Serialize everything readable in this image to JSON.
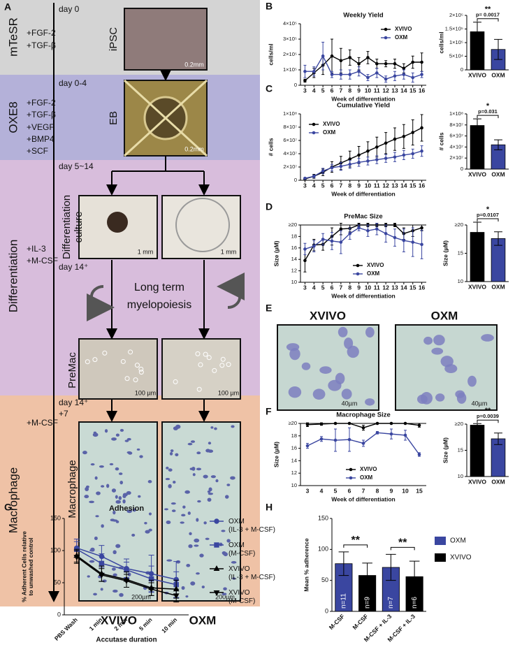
{
  "panel_labels": [
    "A",
    "B",
    "C",
    "D",
    "E",
    "F",
    "G",
    "H"
  ],
  "diagram": {
    "stages": [
      "mTeSR",
      "OXE8",
      "Differentiation",
      "Macrophage"
    ],
    "factors": [
      [
        "+FGF-2",
        "+TGF-β"
      ],
      [
        "+FGF-2",
        "+TGF-β",
        "+VEGF",
        "+BMP4",
        "+SCF"
      ],
      [
        "+IL-3",
        "+M-CSF"
      ],
      [
        "+M-CSF"
      ]
    ],
    "days": [
      "day 0",
      "day 0-4",
      "day 5~14",
      "day 14⁺",
      "day 14⁺",
      "+7"
    ],
    "image_labels": [
      "iPSC",
      "EB",
      "Differentiation",
      "culture",
      "PreMac",
      "Macrophage"
    ],
    "scale_bars": [
      "0.2mm",
      "0.2mm",
      "1 mm",
      "1 mm",
      "100 µm",
      "100 µm",
      "200µm",
      "200µm"
    ],
    "center_text": [
      "Long term",
      "myelopoiesis"
    ],
    "conditions": [
      "XVIVO",
      "OXM"
    ]
  },
  "micrographs": {
    "titles": [
      "XVIVO",
      "OXM"
    ],
    "scale_bars": [
      "40µm",
      "40µm"
    ]
  },
  "chart_data": [
    {
      "type": "line",
      "title": "Weekly Yield",
      "ylabel": "cells/ml",
      "xlabel": "Week of differentiation",
      "x": [
        3,
        4,
        5,
        6,
        7,
        8,
        9,
        10,
        11,
        12,
        13,
        14,
        15,
        16
      ],
      "xlim": [
        2.5,
        16.5
      ],
      "xticks": [
        3,
        4,
        5,
        6,
        7,
        8,
        9,
        10,
        11,
        12,
        13,
        14,
        15,
        16
      ],
      "ylim": [
        0,
        400000
      ],
      "yticks": [
        0,
        {
          "value": 100000,
          "label": "1×10⁵"
        },
        {
          "value": 200000,
          "label": "2×10⁵"
        },
        {
          "value": 300000,
          "label": "3×10⁵"
        },
        {
          "value": 400000,
          "label": "4×10⁵"
        }
      ],
      "legend": "upper-right",
      "series": [
        {
          "name": "XVIVO",
          "color": "#000000",
          "marker": "circle",
          "values": [
            30000,
            80000,
            130000,
            190000,
            160000,
            180000,
            140000,
            180000,
            140000,
            140000,
            140000,
            110000,
            150000,
            150000
          ],
          "errors": [
            10000,
            30000,
            60000,
            110000,
            80000,
            50000,
            40000,
            40000,
            30000,
            20000,
            30000,
            30000,
            40000,
            60000
          ]
        },
        {
          "name": "OXM",
          "color": "#3a46a0",
          "marker": "circle",
          "values": [
            90000,
            90000,
            190000,
            70000,
            70000,
            70000,
            90000,
            50000,
            80000,
            40000,
            60000,
            70000,
            50000,
            70000
          ],
          "errors": [
            40000,
            30000,
            90000,
            20000,
            30000,
            30000,
            30000,
            20000,
            30000,
            20000,
            30000,
            30000,
            30000,
            20000
          ]
        }
      ]
    },
    {
      "type": "bar",
      "ylabel": "cells/ml",
      "categories": [
        "XVIVO",
        "OXM"
      ],
      "colors": [
        "#000000",
        "#3a46a0"
      ],
      "values": [
        140000,
        75000
      ],
      "errors": [
        35000,
        37000
      ],
      "ylim": [
        0,
        200000
      ],
      "yticks": [
        0,
        {
          "value": 50000,
          "label": "5×10⁴"
        },
        {
          "value": 100000,
          "label": "1×10⁵"
        },
        {
          "value": 150000,
          "label": "1.5×10⁵"
        },
        {
          "value": 200000,
          "label": "2×10⁵"
        }
      ],
      "significance": [
        "**"
      ],
      "p_values": [
        "p= 0.0017"
      ]
    },
    {
      "type": "line",
      "title": "Cumulative Yield",
      "ylabel": "# cells",
      "xlabel": "Week of differentiation",
      "x": [
        3,
        4,
        5,
        6,
        7,
        8,
        9,
        10,
        11,
        12,
        13,
        14,
        15,
        16
      ],
      "xlim": [
        2.5,
        16.5
      ],
      "xticks": [
        3,
        4,
        5,
        6,
        7,
        8,
        9,
        10,
        11,
        12,
        13,
        14,
        15,
        16
      ],
      "ylim": [
        0,
        100000000
      ],
      "yticks": [
        0,
        {
          "value": 20000000,
          "label": "2×10⁷"
        },
        {
          "value": 40000000,
          "label": "4×10⁷"
        },
        {
          "value": 60000000,
          "label": "6×10⁷"
        },
        {
          "value": 80000000,
          "label": "8×10⁷"
        },
        {
          "value": 100000000,
          "label": "1×10⁸"
        }
      ],
      "legend": "upper-left",
      "series": [
        {
          "name": "XVIVO",
          "color": "#000000",
          "marker": "circle",
          "values": [
            2000000,
            6000000,
            12000000,
            20000000,
            26000000,
            32000000,
            38000000,
            44000000,
            50000000,
            56000000,
            62000000,
            66000000,
            72000000,
            79000000
          ],
          "errors": [
            1000000,
            3000000,
            5000000,
            8000000,
            10000000,
            12000000,
            13000000,
            14000000,
            15000000,
            16000000,
            17000000,
            18000000,
            19000000,
            20000000
          ]
        },
        {
          "name": "OXM",
          "color": "#3a46a0",
          "marker": "circle",
          "values": [
            3000000,
            6000000,
            14000000,
            19000000,
            21000000,
            24000000,
            27000000,
            29000000,
            31000000,
            33000000,
            35000000,
            38000000,
            40000000,
            44000000
          ],
          "errors": [
            1000000,
            2000000,
            4000000,
            5000000,
            6000000,
            6000000,
            6000000,
            6000000,
            6000000,
            6000000,
            7000000,
            7000000,
            7000000,
            8000000
          ]
        }
      ]
    },
    {
      "type": "bar",
      "ylabel": "# cells",
      "categories": [
        "XVIVO",
        "OXM"
      ],
      "colors": [
        "#000000",
        "#3a46a0"
      ],
      "values": [
        79000000,
        44000000
      ],
      "errors": [
        12000000,
        9000000
      ],
      "ylim": [
        0,
        100000000
      ],
      "yticks": [
        0,
        {
          "value": 20000000,
          "label": "2×10⁷"
        },
        {
          "value": 40000000,
          "label": "4×10⁷"
        },
        {
          "value": 60000000,
          "label": "6×10⁷"
        },
        {
          "value": 80000000,
          "label": "8×10⁷"
        },
        {
          "value": 100000000,
          "label": "1×10⁸"
        }
      ],
      "significance": [
        "*"
      ],
      "p_values": [
        "p=0.031"
      ]
    },
    {
      "type": "line",
      "title": "PreMac Size",
      "ylabel": "Size (µM)",
      "xlabel": "Week of differentiation",
      "x": [
        3,
        4,
        5,
        6,
        7,
        8,
        9,
        10,
        11,
        12,
        13,
        14,
        15,
        16
      ],
      "xlim": [
        2.5,
        16.5
      ],
      "xticks": [
        3,
        4,
        5,
        6,
        7,
        8,
        9,
        10,
        11,
        12,
        13,
        14,
        15,
        16
      ],
      "ylim": [
        10,
        20
      ],
      "yticks": [
        10,
        12,
        14,
        16,
        18,
        {
          "value": 20,
          "label": "≥20"
        }
      ],
      "hline": 20,
      "legend": "lower-center",
      "series": [
        {
          "name": "XVIVO",
          "color": "#000000",
          "marker": "circle",
          "values": [
            13.8,
            16.5,
            16.6,
            18,
            19.3,
            19.4,
            20,
            20,
            20,
            20,
            20,
            18.5,
            19,
            19.5
          ],
          "errors": [
            2,
            1,
            1,
            1.5,
            1,
            0.6,
            0.3,
            0.3,
            0.3,
            0.3,
            0.3,
            1,
            1,
            0.5
          ]
        },
        {
          "name": "OXM",
          "color": "#3a46a0",
          "marker": "circle",
          "values": [
            15.8,
            16.3,
            17.5,
            17.2,
            17,
            18.5,
            19.5,
            19,
            19.3,
            18.5,
            17.8,
            17.3,
            17,
            16.6
          ],
          "errors": [
            1,
            1,
            1,
            1.5,
            2,
            1,
            0.5,
            1,
            1,
            1.5,
            1.5,
            2,
            2.5,
            2.5
          ]
        }
      ]
    },
    {
      "type": "bar",
      "ylabel": "Size (µM)",
      "categories": [
        "XVIVO",
        "OXM"
      ],
      "colors": [
        "#000000",
        "#3a46a0"
      ],
      "values": [
        18.7,
        17.6
      ],
      "errors": [
        1.8,
        1.2
      ],
      "ylim": [
        10,
        20
      ],
      "yticks": [
        10,
        15,
        {
          "value": 20,
          "label": "≥20"
        }
      ],
      "significance": [
        "*"
      ],
      "p_values": [
        "p=0.0107"
      ]
    },
    {
      "type": "line",
      "title": "Macrophage Size",
      "ylabel": "Size (µM)",
      "xlabel": "Week of differentiation",
      "categories": [
        "3",
        "4",
        "5",
        "6",
        "7",
        "8",
        "9",
        "10",
        "15"
      ],
      "ylim": [
        10,
        20
      ],
      "yticks": [
        10,
        12,
        14,
        16,
        18,
        {
          "value": 20,
          "label": "≥20"
        }
      ],
      "hline": 20,
      "legend": "lower-center",
      "series": [
        {
          "name": "XVIVO",
          "color": "#000000",
          "marker": "circle",
          "values": [
            19.8,
            19.9,
            20,
            20,
            19.3,
            20,
            20,
            20,
            19.7
          ],
          "errors": [
            0.3,
            0.2,
            0.1,
            0.1,
            0.4,
            0.1,
            0.1,
            0.1,
            0.3
          ]
        },
        {
          "name": "OXM",
          "color": "#3a46a0",
          "marker": "circle",
          "values": [
            16.4,
            17.5,
            17.3,
            17.4,
            16.8,
            18.5,
            18.3,
            18.1,
            15
          ],
          "errors": [
            0.4,
            0.4,
            1.8,
            1.9,
            0.5,
            0.2,
            0.8,
            0.8,
            0.3
          ]
        }
      ]
    },
    {
      "type": "bar",
      "ylabel": "Size (µM)",
      "categories": [
        "XVIVO",
        "OXM"
      ],
      "colors": [
        "#000000",
        "#3a46a0"
      ],
      "values": [
        19.8,
        17.2
      ],
      "errors": [
        0.3,
        1.1
      ],
      "ylim": [
        10,
        20
      ],
      "yticks": [
        10,
        15,
        {
          "value": 20,
          "label": "≥20"
        }
      ],
      "significance": [
        "**"
      ],
      "p_values": [
        "p=0.0039"
      ]
    },
    {
      "type": "line",
      "title": "Adhesion",
      "ylabel": "% Adherent Cells relative to unwashed control",
      "xlabel": "Accutase duration",
      "categories": [
        "PBS Wash",
        "1 min",
        "2 min",
        "5 min",
        "10 min"
      ],
      "ylim": [
        0,
        150
      ],
      "yticks": [
        0,
        50,
        100,
        150
      ],
      "legend": "right",
      "series": [
        {
          "name": "OXM (IL-3 + M-CSF)",
          "color": "#3a46a0",
          "marker": "circle",
          "values": [
            104,
            91,
            72,
            64,
            55
          ],
          "errors": [
            14,
            17,
            15,
            29,
            28
          ]
        },
        {
          "name": "OXM (M-CSF)",
          "color": "#3a46a0",
          "marker": "square",
          "values": [
            102,
            80,
            70,
            56,
            47
          ],
          "errors": [
            12,
            15,
            12,
            20,
            20
          ]
        },
        {
          "name": "XVIVO (IL-3 + M-CSF)",
          "color": "#000000",
          "marker": "triangle",
          "values": [
            92,
            64,
            55,
            42,
            40
          ],
          "errors": [
            10,
            12,
            12,
            12,
            14
          ]
        },
        {
          "name": "XVIVO (M-CSF)",
          "color": "#000000",
          "marker": "triangle-down",
          "values": [
            90,
            62,
            53,
            40,
            30
          ],
          "errors": [
            10,
            10,
            10,
            10,
            10
          ]
        }
      ]
    },
    {
      "type": "bar",
      "ylabel": "Mean % adherence",
      "categories": [
        "M-CSF",
        "M-CSF",
        "M-CSF + IL-3",
        "M-CSF + IL-3"
      ],
      "colors": [
        "#3a46a0",
        "#000000",
        "#3a46a0",
        "#000000"
      ],
      "values": [
        77,
        58,
        71,
        56
      ],
      "errors": [
        19,
        20,
        21,
        25
      ],
      "bar_labels": [
        "n=11",
        "n=9",
        "n=7",
        "n=6"
      ],
      "ylim": [
        0,
        150
      ],
      "yticks": [
        0,
        50,
        100,
        150
      ],
      "legend_entries": [
        {
          "name": "OXM",
          "color": "#3a46a0"
        },
        {
          "name": "XVIVO",
          "color": "#000000"
        }
      ],
      "significance": [
        "**",
        "**"
      ]
    }
  ]
}
